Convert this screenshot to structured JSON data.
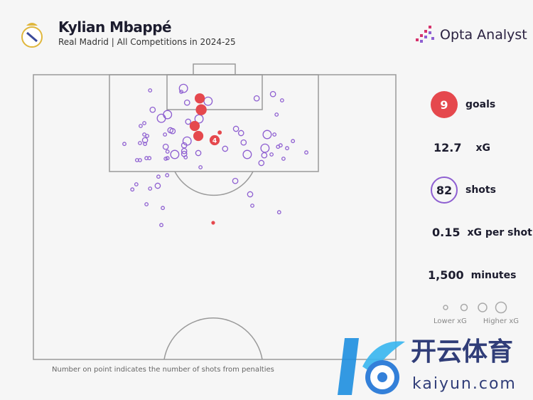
{
  "header": {
    "title": "Kylian Mbappé",
    "subtitle": "Real Madrid | All Competitions in 2024-25",
    "brand": "Opta Analyst",
    "crest_icon": "real-madrid-crest"
  },
  "stats": {
    "goals_value": "9",
    "goals_label": "goals",
    "xg_value": "12.7",
    "xg_label": "xG",
    "shots_value": "82",
    "shots_label": "shots",
    "xg_per_shot_value": "0.15",
    "xg_per_shot_label": "xG per shot",
    "minutes_value": "1,500",
    "minutes_label": "minutes"
  },
  "legend": {
    "low": "Lower xG",
    "high": "Higher xG"
  },
  "note": "Number on point indicates the number of shots from penalties",
  "watermark": {
    "cn": "开云体育",
    "en": "kaiyun.com"
  },
  "colors": {
    "goal": "#e5484d",
    "shot": "#8e5fd1",
    "line": "#9a9a9a"
  },
  "chart_data": {
    "type": "scatter",
    "title": "Kylian Mbappé shot map",
    "coords": "x: 0-100 across pitch width, y: 0-100 distance from goal line over half pitch",
    "goals": [
      [
        45.9,
        8.3,
        0.3
      ],
      [
        46.3,
        12.3,
        0.35
      ],
      [
        44.5,
        18,
        0.3
      ],
      [
        45.5,
        21.5,
        0.3
      ],
      [
        50,
        23,
        0.3,
        "4"
      ],
      [
        51.4,
        20.3,
        0.05
      ],
      [
        49.6,
        52,
        0.04
      ]
    ],
    "shots": [
      [
        32.2,
        5.5,
        0.03
      ],
      [
        41.4,
        4.8,
        0.2
      ],
      [
        40.8,
        6,
        0.03
      ],
      [
        42.4,
        9.8,
        0.08
      ],
      [
        48.2,
        9.3,
        0.2
      ],
      [
        61.6,
        8.3,
        0.08
      ],
      [
        66.1,
        6.8,
        0.08
      ],
      [
        68.6,
        9,
        0.03
      ],
      [
        32.9,
        12.3,
        0.08
      ],
      [
        35.3,
        15.3,
        0.2
      ],
      [
        37,
        14,
        0.2
      ],
      [
        67.1,
        14,
        0.03
      ],
      [
        42.7,
        16.5,
        0.08
      ],
      [
        45.7,
        15.5,
        0.2
      ],
      [
        30.6,
        17,
        0.03
      ],
      [
        29.6,
        18,
        0.03
      ],
      [
        37.8,
        19.5,
        0.08
      ],
      [
        38.4,
        19.8,
        0.08
      ],
      [
        30.6,
        21,
        0.03
      ],
      [
        31.4,
        21.5,
        0.03
      ],
      [
        36.3,
        21,
        0.03
      ],
      [
        55.9,
        19,
        0.08
      ],
      [
        57.3,
        20.5,
        0.08
      ],
      [
        64.5,
        21,
        0.2
      ],
      [
        66.5,
        21,
        0.03
      ],
      [
        30.8,
        23,
        0.08
      ],
      [
        25.1,
        24.3,
        0.03
      ],
      [
        29.4,
        24,
        0.03
      ],
      [
        30.8,
        24.3,
        0.03
      ],
      [
        42.4,
        23.3,
        0.2
      ],
      [
        41.6,
        24.8,
        0.08
      ],
      [
        36.5,
        25.3,
        0.08
      ],
      [
        58,
        23.8,
        0.08
      ],
      [
        71.6,
        23.3,
        0.03
      ],
      [
        52.9,
        26,
        0.08
      ],
      [
        63.9,
        25.8,
        0.2
      ],
      [
        67.5,
        25.3,
        0.03
      ],
      [
        68.2,
        24.8,
        0.03
      ],
      [
        70,
        25.8,
        0.03
      ],
      [
        75.3,
        27.3,
        0.03
      ],
      [
        37,
        27,
        0.03
      ],
      [
        39,
        28,
        0.2
      ],
      [
        41.6,
        26.8,
        0.08
      ],
      [
        41.6,
        27.8,
        0.08
      ],
      [
        42,
        29,
        0.03
      ],
      [
        45.5,
        27.5,
        0.08
      ],
      [
        59,
        28,
        0.2
      ],
      [
        63.7,
        28.3,
        0.08
      ],
      [
        65.7,
        28,
        0.03
      ],
      [
        69,
        29.5,
        0.03
      ],
      [
        62.9,
        31,
        0.08
      ],
      [
        28.6,
        30,
        0.03
      ],
      [
        29.4,
        30,
        0.03
      ],
      [
        31.2,
        29.3,
        0.03
      ],
      [
        32,
        29.3,
        0.03
      ],
      [
        36.5,
        29.5,
        0.03
      ],
      [
        37,
        29.3,
        0.03
      ],
      [
        46.1,
        32.5,
        0.03
      ],
      [
        34.5,
        35.8,
        0.03
      ],
      [
        36.9,
        35.3,
        0.03
      ],
      [
        55.7,
        37.3,
        0.08
      ],
      [
        28.4,
        38.5,
        0.03
      ],
      [
        27.3,
        40.3,
        0.03
      ],
      [
        32.2,
        40,
        0.03
      ],
      [
        34.3,
        39,
        0.08
      ],
      [
        59.8,
        42,
        0.08
      ],
      [
        31.2,
        45.5,
        0.03
      ],
      [
        35.7,
        46.8,
        0.03
      ],
      [
        60.4,
        46,
        0.03
      ],
      [
        67.8,
        48.3,
        0.03
      ],
      [
        35.3,
        52.8,
        0.03
      ]
    ]
  }
}
